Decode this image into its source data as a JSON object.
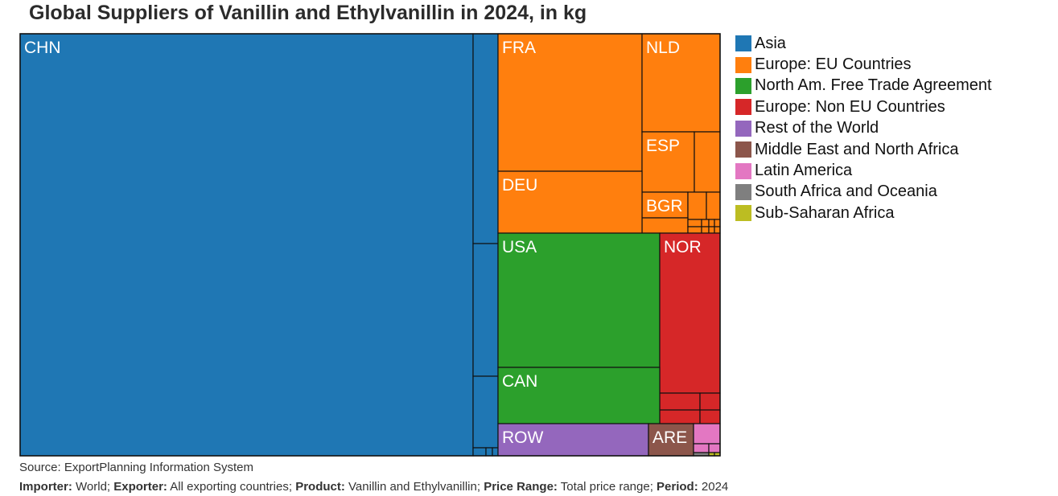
{
  "title": "Global Suppliers of Vanillin and Ethylvanillin in 2024, in kg",
  "chart_data": {
    "type": "treemap",
    "title": "Global Suppliers of Vanillin and Ethylvanillin in 2024, in kg",
    "legend_position": "right",
    "labeled_tiles": [
      "CHN",
      "FRA",
      "NLD",
      "ESP",
      "BGR",
      "DEU",
      "USA",
      "NOR",
      "CAN",
      "ROW",
      "ARE"
    ],
    "groups": [
      {
        "name": "Asia",
        "color": "#1f77b4"
      },
      {
        "name": "Europe: EU Countries",
        "color": "#ff7f0e"
      },
      {
        "name": "North Am. Free Trade Agreement",
        "color": "#2ca02c"
      },
      {
        "name": "Europe: Non EU Countries",
        "color": "#d62728"
      },
      {
        "name": "Rest of the World",
        "color": "#9467bd"
      },
      {
        "name": "Middle East and North Africa",
        "color": "#8c564b"
      },
      {
        "name": "Latin America",
        "color": "#e377c2"
      },
      {
        "name": "South Africa and Oceania",
        "color": "#7f7f7f"
      },
      {
        "name": "Sub-Saharan Africa",
        "color": "#bcbd22"
      }
    ]
  },
  "footer": {
    "source": "Source: ExportPlanning Information System",
    "importer_label": "Importer:",
    "importer_value": " World; ",
    "exporter_label": "Exporter:",
    "exporter_value": " All exporting countries; ",
    "product_label": "Product:",
    "product_value": " Vanillin and Ethylvanillin; ",
    "price_label": "Price Range:",
    "price_value": " Total price range; ",
    "period_label": "Period:",
    "period_value": " 2024"
  }
}
